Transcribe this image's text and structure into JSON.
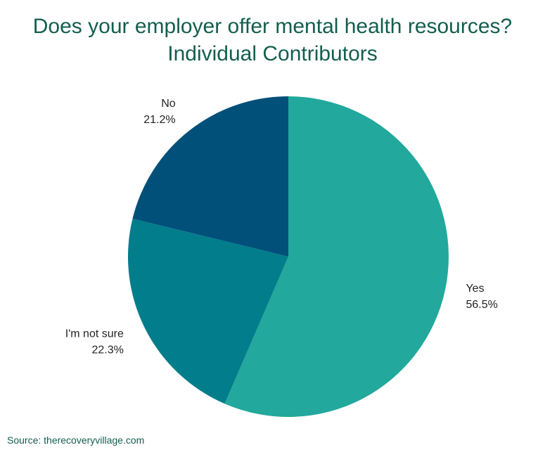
{
  "chart_data": {
    "type": "pie",
    "title": "Does your employer offer mental health resources?",
    "subtitle": "Individual Contributors",
    "slices": [
      {
        "label": "Yes",
        "value": 56.5,
        "display": "56.5%",
        "color": "#22a89c"
      },
      {
        "label": "I'm not sure",
        "value": 22.3,
        "display": "22.3%",
        "color": "#027d8b"
      },
      {
        "label": "No",
        "value": 21.2,
        "display": "21.2%",
        "color": "#00507a"
      }
    ]
  },
  "source": "Source: therecoveryvillage.com"
}
